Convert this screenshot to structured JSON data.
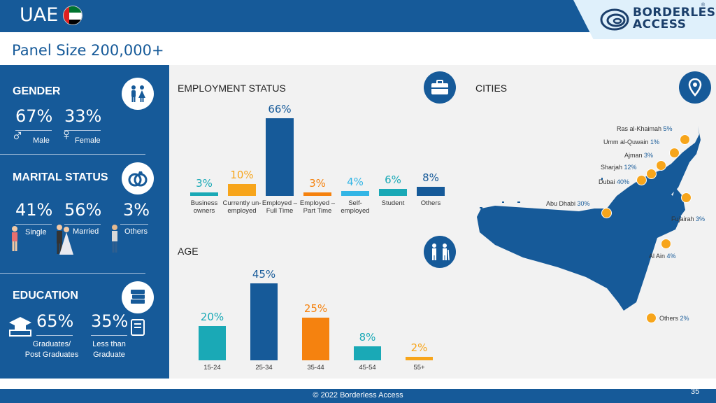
{
  "header": {
    "title": "UAE",
    "subtitle": "Panel Size 200,000+",
    "brand_line1": "BORDERLESS",
    "brand_line2": "ACCESS",
    "registered": "®"
  },
  "gender": {
    "title": "GENDER",
    "items": [
      {
        "pct": "67%",
        "label": "Male"
      },
      {
        "pct": "33%",
        "label": "Female"
      }
    ]
  },
  "marital": {
    "title": "MARITAL STATUS",
    "items": [
      {
        "pct": "41%",
        "label": "Single"
      },
      {
        "pct": "56%",
        "label": "Married"
      },
      {
        "pct": "3%",
        "label": "Others"
      }
    ]
  },
  "education": {
    "title": "EDUCATION",
    "items": [
      {
        "pct": "65%",
        "label_line1": "Graduates/",
        "label_line2": "Post Graduates"
      },
      {
        "pct": "35%",
        "label_line1": "Less than",
        "label_line2": "Graduate"
      }
    ]
  },
  "employment": {
    "title": "EMPLOYMENT STATUS",
    "bars": [
      {
        "value": 3,
        "label_text": "3%",
        "category": "Business owners",
        "color": "#1aa9b6"
      },
      {
        "value": 10,
        "label_text": "10%",
        "category": "Currently un-employed",
        "color": "#f7a51b"
      },
      {
        "value": 66,
        "label_text": "66%",
        "category": "Employed – Full Time",
        "color": "#165a99"
      },
      {
        "value": 3,
        "label_text": "3%",
        "category": "Employed – Part Time",
        "color": "#f5820f"
      },
      {
        "value": 4,
        "label_text": "4%",
        "category": "Self-employed",
        "color": "#33b5e5"
      },
      {
        "value": 6,
        "label_text": "6%",
        "category": "Student",
        "color": "#1aa9b6"
      },
      {
        "value": 8,
        "label_text": "8%",
        "category": "Others",
        "color": "#165a99"
      }
    ]
  },
  "age": {
    "title": "AGE",
    "bars": [
      {
        "value": 20,
        "label_text": "20%",
        "category": "15-24",
        "color": "#1aa9b6"
      },
      {
        "value": 45,
        "label_text": "45%",
        "category": "25-34",
        "color": "#165a99"
      },
      {
        "value": 25,
        "label_text": "25%",
        "category": "35-44",
        "color": "#f5820f"
      },
      {
        "value": 8,
        "label_text": "8%",
        "category": "45-54",
        "color": "#1aa9b6"
      },
      {
        "value": 2,
        "label_text": "2%",
        "category": "55+",
        "color": "#f7a51b"
      }
    ]
  },
  "cities": {
    "title": "CITIES",
    "items": [
      {
        "name": "Ras al-Khaimah",
        "pct": "5%"
      },
      {
        "name": "Umm al-Quwain",
        "pct": "1%"
      },
      {
        "name": "Ajman",
        "pct": "3%"
      },
      {
        "name": "Sharjah",
        "pct": "12%"
      },
      {
        "name": "Dubai",
        "pct": "40%"
      },
      {
        "name": "Abu Dhabi",
        "pct": "30%"
      },
      {
        "name": "Fujairah",
        "pct": "3%"
      },
      {
        "name": "Al Ain",
        "pct": "4%"
      },
      {
        "name": "Others",
        "pct": "2%"
      }
    ]
  },
  "footer": {
    "copyright": "© 2022 Borderless Access",
    "page": "35"
  }
}
